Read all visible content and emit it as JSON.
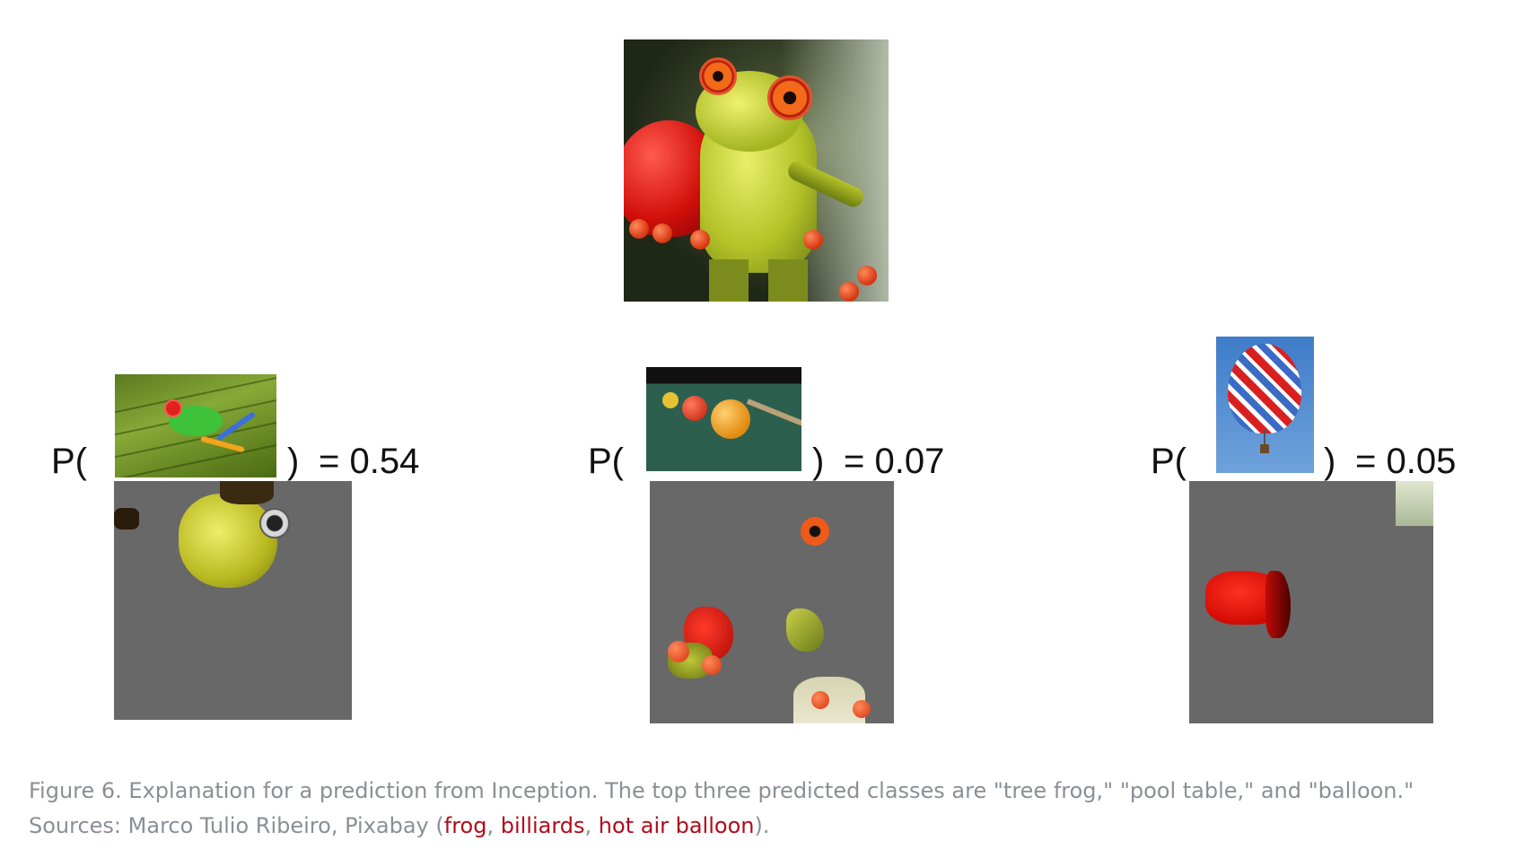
{
  "figure": {
    "rows": [
      {
        "label_open": "P(",
        "label_close": ")",
        "value": "= 0.54"
      },
      {
        "label_open": "P(",
        "label_close": ")",
        "value": "= 0.07"
      },
      {
        "label_open": "P(",
        "label_close": ")",
        "value": "= 0.05"
      }
    ]
  },
  "caption": {
    "line1": "Figure 6. Explanation for a prediction from Inception. The top three predicted classes are \"tree frog,\" \"pool table,\" and \"balloon.\"",
    "line2_prefix": "Sources: Marco Tulio Ribeiro, Pixabay (",
    "link_frog": "frog",
    "sep1": ", ",
    "link_billiards": "billiards",
    "sep2": ", ",
    "link_balloon": "hot air balloon",
    "line2_suffix": ")."
  },
  "colors": {
    "link": "#b10b1a",
    "caption_text": "#8a8f96",
    "mask_gray": "#686868"
  }
}
